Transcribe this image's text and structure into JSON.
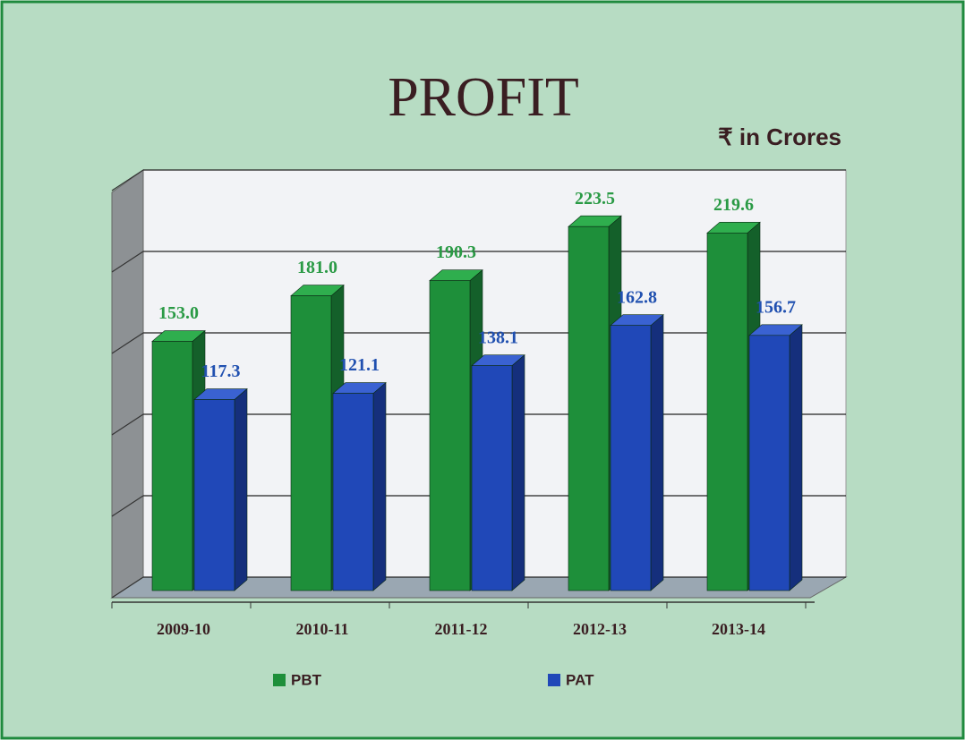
{
  "chart_data": {
    "type": "bar3d",
    "title": "PROFIT",
    "subtitle": "₹ in Crores",
    "categories": [
      "2009-10",
      "2010-11",
      "2011-12",
      "2012-13",
      "2013-14"
    ],
    "series": [
      {
        "name": "PBT",
        "color": "#1e8f3a",
        "values": [
          153.0,
          181.0,
          190.3,
          223.5,
          219.6
        ],
        "value_labels": [
          "153.0",
          "181.0",
          "190.3",
          "223.5",
          "219.6"
        ]
      },
      {
        "name": "PAT",
        "color": "#2048b8",
        "values": [
          117.3,
          121.1,
          138.1,
          162.8,
          156.7
        ],
        "value_labels": [
          "117.3",
          "121.1",
          "138.1",
          "162.8",
          "156.7"
        ]
      }
    ],
    "ylim": [
      0,
      250
    ],
    "yticks": [
      0,
      50,
      100,
      150,
      200,
      250
    ],
    "grid": true
  }
}
